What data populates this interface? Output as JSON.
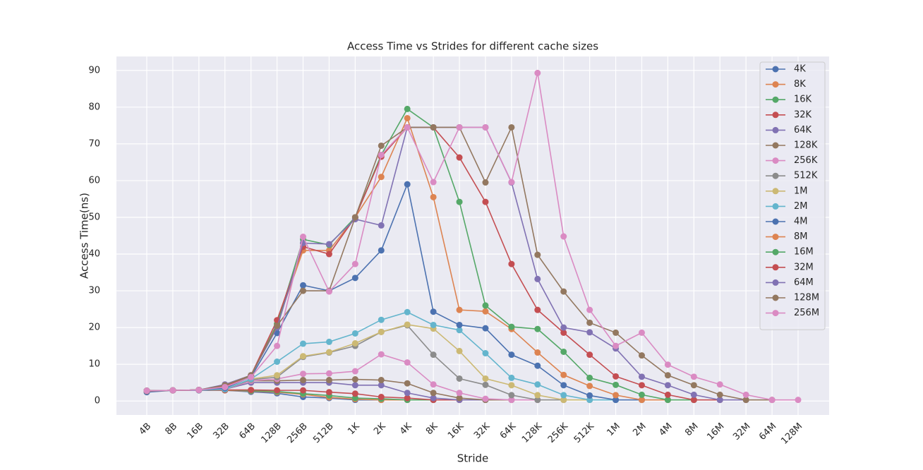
{
  "chart_data": {
    "type": "line",
    "title": "Access Time vs Strides for different cache sizes",
    "xlabel": "Stride",
    "ylabel": "Access Time(ns)",
    "categories": [
      "4B",
      "8B",
      "16B",
      "32B",
      "64B",
      "128B",
      "256B",
      "512B",
      "1K",
      "2K",
      "4K",
      "8K",
      "16K",
      "32K",
      "64K",
      "128K",
      "256K",
      "512K",
      "1M",
      "2M",
      "4M",
      "8M",
      "16M",
      "32M",
      "64M",
      "128M"
    ],
    "ylim": [
      -3.8,
      93.8
    ],
    "yticks": [
      0,
      10,
      20,
      30,
      40,
      50,
      60,
      70,
      80,
      90
    ],
    "grid": true,
    "legend": "upper right",
    "series": [
      {
        "name": "4K",
        "color": "#4c72b0",
        "values": [
          2.4,
          2.9,
          2.9,
          2.9,
          2.5,
          2.1,
          1.1,
          0.8,
          0.3,
          0.3,
          null,
          null,
          null,
          null,
          null,
          null,
          null,
          null,
          null,
          null,
          null,
          null,
          null,
          null,
          null,
          null
        ]
      },
      {
        "name": "8K",
        "color": "#dd8452",
        "values": [
          2.7,
          2.9,
          3,
          2.9,
          2.7,
          2.4,
          1.8,
          1,
          0.5,
          0.3,
          0.3,
          null,
          null,
          null,
          null,
          null,
          null,
          null,
          null,
          null,
          null,
          null,
          null,
          null,
          null,
          null
        ]
      },
      {
        "name": "16K",
        "color": "#55a868",
        "values": [
          2.8,
          2.9,
          3,
          3,
          2.8,
          2.6,
          2,
          1.5,
          0.8,
          0.6,
          0.3,
          0.3,
          null,
          null,
          null,
          null,
          null,
          null,
          null,
          null,
          null,
          null,
          null,
          null,
          null,
          null
        ]
      },
      {
        "name": "32K",
        "color": "#c44e52",
        "values": [
          2.8,
          2.9,
          3,
          3,
          3,
          2.9,
          2.9,
          2.4,
          2,
          1.1,
          0.8,
          0.3,
          0.3,
          null,
          null,
          null,
          null,
          null,
          null,
          null,
          null,
          null,
          null,
          null,
          null,
          null
        ]
      },
      {
        "name": "64K",
        "color": "#8172b3",
        "values": [
          2.8,
          2.9,
          3,
          3.2,
          5,
          5,
          5,
          5,
          4.3,
          4.3,
          2.2,
          0.8,
          0.3,
          0.3,
          null,
          null,
          null,
          null,
          null,
          null,
          null,
          null,
          null,
          null,
          null,
          null
        ]
      },
      {
        "name": "128K",
        "color": "#937860",
        "values": [
          2.8,
          2.9,
          3,
          3.2,
          5.5,
          5.5,
          5.7,
          5.7,
          5.9,
          5.7,
          4.8,
          2.2,
          0.8,
          0.3,
          0.3,
          null,
          null,
          null,
          null,
          null,
          null,
          null,
          null,
          null,
          null,
          null
        ]
      },
      {
        "name": "256K",
        "color": "#da8bc3",
        "values": [
          2.8,
          2.9,
          3,
          3.2,
          5.5,
          6,
          7.4,
          7.5,
          8.1,
          12.7,
          10.5,
          4.5,
          2.2,
          0.6,
          0.3,
          0.3,
          null,
          null,
          null,
          null,
          null,
          null,
          null,
          null,
          null,
          null
        ]
      },
      {
        "name": "512K",
        "color": "#8c8c8c",
        "values": [
          2.8,
          2.9,
          3,
          3.2,
          5.8,
          6.5,
          12,
          13.2,
          15,
          18.8,
          20.6,
          12.6,
          6.1,
          4.4,
          1.6,
          0.3,
          0.3,
          null,
          null,
          null,
          null,
          null,
          null,
          null,
          null,
          null
        ]
      },
      {
        "name": "1M",
        "color": "#ccb974",
        "values": [
          2.8,
          2.9,
          3,
          3.2,
          6,
          7,
          12.2,
          13.3,
          15.7,
          18.8,
          20.8,
          19.7,
          13.6,
          6.1,
          4.3,
          1.6,
          0.3,
          0.3,
          null,
          null,
          null,
          null,
          null,
          null,
          null,
          null
        ]
      },
      {
        "name": "2M",
        "color": "#64b5cd",
        "values": [
          2.8,
          2.9,
          3,
          3.2,
          6,
          10.7,
          15.6,
          16.1,
          18.4,
          22.1,
          24.2,
          20.7,
          19.3,
          13,
          6.3,
          4.5,
          1.6,
          0.3,
          0.3,
          null,
          null,
          null,
          null,
          null,
          null,
          null
        ]
      },
      {
        "name": "4M",
        "color": "#4c72b0",
        "values": [
          2.8,
          2.9,
          3,
          3.5,
          6.5,
          18.5,
          31.5,
          30,
          33.5,
          41,
          59,
          24.3,
          20.7,
          19.8,
          12.6,
          9.6,
          4.3,
          1.5,
          0.3,
          0.3,
          null,
          null,
          null,
          null,
          null,
          null
        ]
      },
      {
        "name": "8M",
        "color": "#dd8452",
        "values": [
          2.8,
          2.9,
          3,
          4,
          6.8,
          21,
          41,
          41,
          50,
          61,
          77,
          55.5,
          24.8,
          24.4,
          19.6,
          13.2,
          7.1,
          4.1,
          1.6,
          0.3,
          0.3,
          null,
          null,
          null,
          null,
          null
        ]
      },
      {
        "name": "16M",
        "color": "#55a868",
        "values": [
          2.8,
          2.9,
          3,
          4,
          6.8,
          21,
          44,
          42.5,
          50,
          67,
          79.5,
          74.5,
          54.2,
          26,
          20.2,
          19.6,
          13.4,
          6.3,
          4.4,
          1.7,
          0.3,
          0.3,
          null,
          null,
          null,
          null
        ]
      },
      {
        "name": "32M",
        "color": "#c44e52",
        "values": [
          2.8,
          2.9,
          3,
          4,
          7,
          22,
          42,
          40,
          50,
          66.5,
          74.5,
          74.5,
          66.3,
          54.2,
          37.3,
          24.8,
          18.6,
          12.6,
          6.7,
          4.3,
          1.7,
          0.3,
          0.3,
          null,
          null,
          null
        ]
      },
      {
        "name": "64M",
        "color": "#8172b3",
        "values": [
          2.8,
          2.9,
          3,
          4.5,
          7,
          20,
          43,
          42.7,
          49.5,
          47.8,
          74.5,
          74.5,
          74.5,
          74.5,
          59.5,
          33.2,
          20,
          18.7,
          14.3,
          6.6,
          4.3,
          1.7,
          0.3,
          0.3,
          null,
          null
        ]
      },
      {
        "name": "128M",
        "color": "#937860",
        "values": [
          2.8,
          2.9,
          3,
          4.3,
          7,
          20.5,
          30,
          30,
          50,
          69.5,
          74.5,
          74.5,
          74.5,
          59.5,
          74.5,
          39.8,
          29.8,
          21.3,
          18.6,
          12.4,
          7,
          4.3,
          1.7,
          0.3,
          0.3,
          null
        ]
      },
      {
        "name": "256M",
        "color": "#da8bc3",
        "values": [
          2.8,
          2.9,
          3,
          3.8,
          6.5,
          15,
          44.7,
          29.8,
          37.3,
          67,
          74.5,
          59.6,
          74.5,
          74.5,
          59.6,
          89.3,
          44.8,
          24.8,
          15,
          18.6,
          9.9,
          6.6,
          4.5,
          1.7,
          0.3,
          0.3
        ]
      }
    ]
  }
}
